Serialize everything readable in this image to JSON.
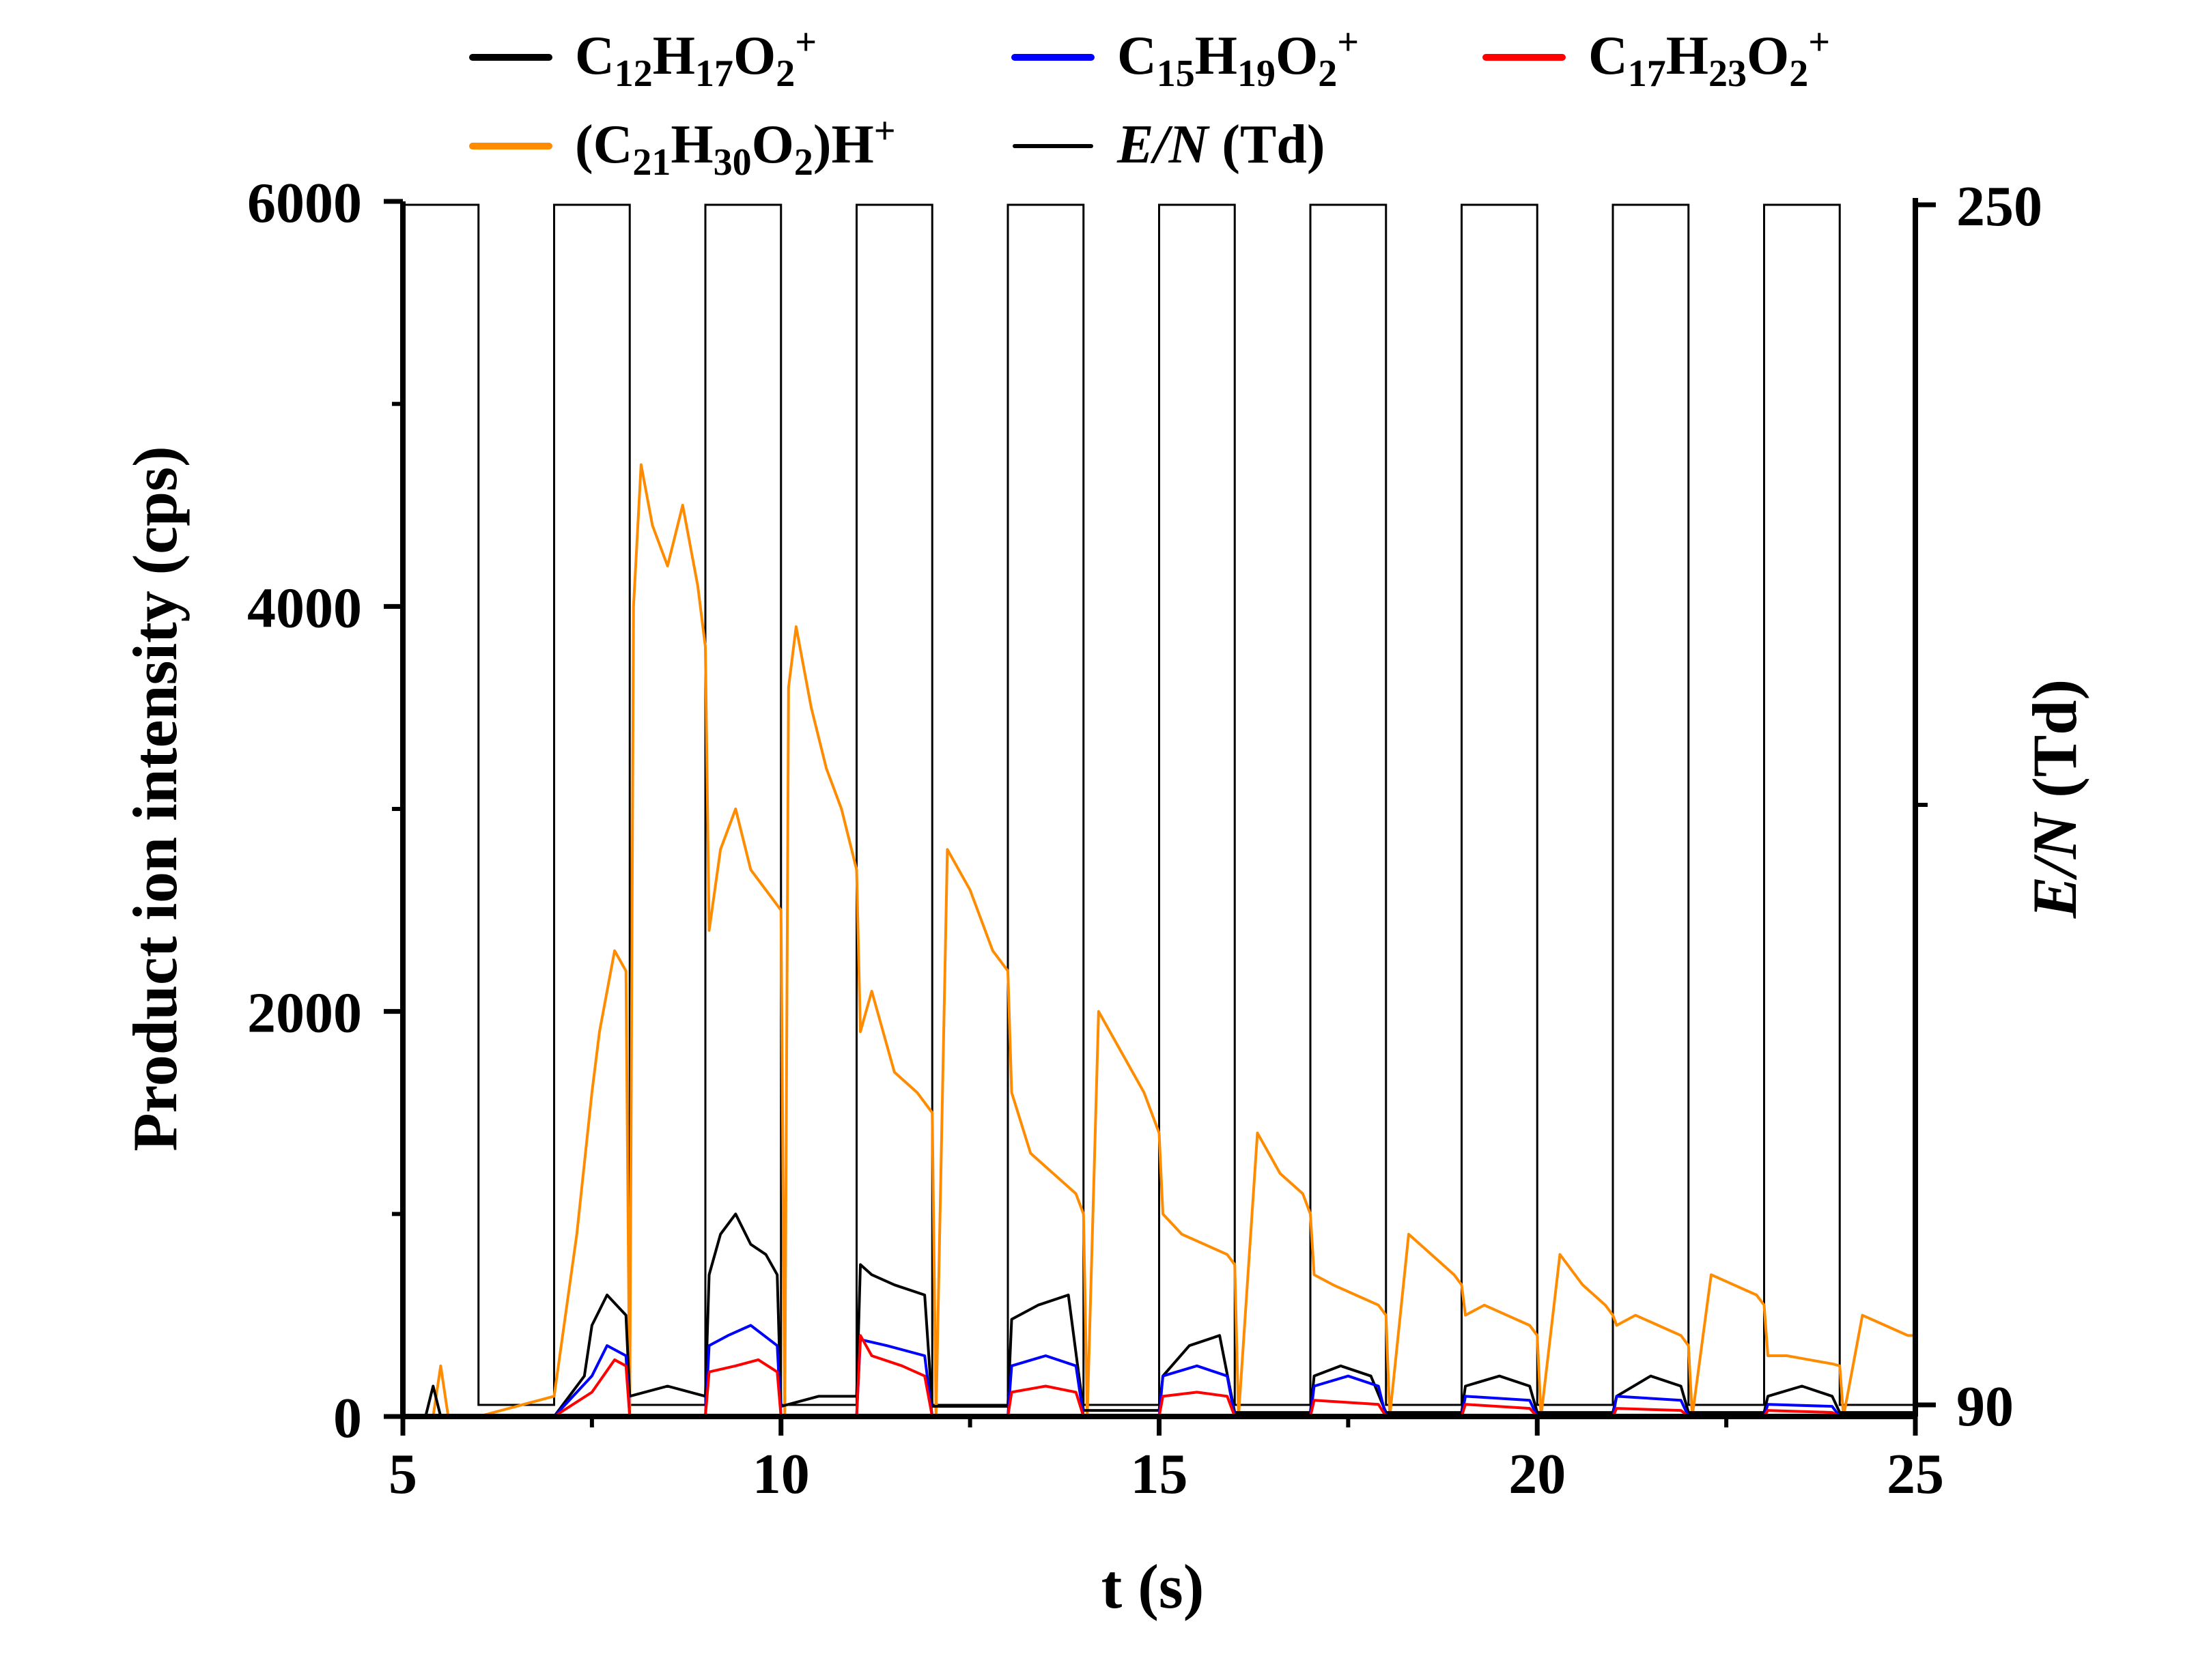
{
  "chart_data": {
    "type": "line",
    "xlabel": "t (s)",
    "ylabel": "Product ion intensity (cps)",
    "y2label": {
      "italic": "E/N",
      "rest": " (Td)"
    },
    "xlim": [
      5,
      25
    ],
    "ylim": [
      0,
      6000
    ],
    "y2lim": [
      90,
      250
    ],
    "x_ticks": [
      5,
      10,
      15,
      20,
      25
    ],
    "y_ticks": [
      0,
      2000,
      4000,
      6000
    ],
    "y2_ticks": [
      90,
      250
    ],
    "grid": false,
    "legend_position": "top",
    "legend": [
      {
        "series": "C12",
        "parts": [
          [
            "C",
            ""
          ],
          [
            "12",
            "sub"
          ],
          [
            "H",
            ""
          ],
          [
            "17",
            "sub"
          ],
          [
            "O",
            ""
          ],
          [
            "2",
            "sub"
          ],
          [
            "+",
            "sup"
          ]
        ],
        "color": "#000000"
      },
      {
        "series": "C15",
        "parts": [
          [
            "C",
            ""
          ],
          [
            "15",
            "sub"
          ],
          [
            "H",
            ""
          ],
          [
            "19",
            "sub"
          ],
          [
            "O",
            ""
          ],
          [
            "2",
            "sub"
          ],
          [
            "+",
            "sup"
          ]
        ],
        "color": "#0000ff"
      },
      {
        "series": "C17",
        "parts": [
          [
            "C",
            ""
          ],
          [
            "17",
            "sub"
          ],
          [
            "H",
            ""
          ],
          [
            "23",
            "sub"
          ],
          [
            "O",
            ""
          ],
          [
            "2",
            "sub"
          ],
          [
            "+",
            "sup"
          ]
        ],
        "color": "#ff0000"
      },
      {
        "series": "C21",
        "parts": [
          [
            "(C",
            ""
          ],
          [
            "21",
            "sub"
          ],
          [
            "H",
            ""
          ],
          [
            "30",
            "sub"
          ],
          [
            "O",
            ""
          ],
          [
            "2",
            "sub"
          ],
          [
            ")H",
            ""
          ],
          [
            "+",
            "sup"
          ]
        ],
        "color": "#ff8c00"
      },
      {
        "series": "EN",
        "parts": [
          [
            "E/N",
            "italic"
          ],
          [
            " (Td)",
            ""
          ]
        ],
        "color": "#000000"
      }
    ],
    "en_square_wave": {
      "low": 90,
      "high": 250,
      "segments": [
        [
          5.0,
          6.0,
          250
        ],
        [
          6.0,
          7.0,
          90
        ],
        [
          7.0,
          8.0,
          250
        ],
        [
          8.0,
          9.0,
          90
        ],
        [
          9.0,
          10.0,
          250
        ],
        [
          10.0,
          11.0,
          90
        ],
        [
          11.0,
          12.0,
          250
        ],
        [
          12.0,
          13.0,
          90
        ],
        [
          13.0,
          14.0,
          250
        ],
        [
          14.0,
          15.0,
          90
        ],
        [
          15.0,
          16.0,
          250
        ],
        [
          16.0,
          17.0,
          90
        ],
        [
          17.0,
          18.0,
          250
        ],
        [
          18.0,
          19.0,
          90
        ],
        [
          19.0,
          20.0,
          250
        ],
        [
          20.0,
          21.0,
          90
        ],
        [
          21.0,
          22.0,
          250
        ],
        [
          22.0,
          23.0,
          90
        ],
        [
          23.0,
          24.0,
          250
        ],
        [
          24.0,
          25.0,
          90
        ]
      ]
    },
    "series": [
      {
        "name": "(C21H30O2)H+",
        "color": "#ff8c00",
        "x": [
          5.0,
          5.4,
          5.5,
          5.6,
          6.0,
          6.5,
          7.0,
          7.3,
          7.5,
          7.6,
          7.8,
          7.95,
          8.0,
          8.05,
          8.15,
          8.3,
          8.5,
          8.7,
          8.9,
          9.0,
          9.05,
          9.2,
          9.4,
          9.6,
          9.8,
          10.0,
          10.05,
          10.1,
          10.2,
          10.4,
          10.6,
          10.8,
          11.0,
          11.05,
          11.2,
          11.5,
          11.8,
          12.0,
          12.05,
          12.2,
          12.5,
          12.8,
          13.0,
          13.05,
          13.3,
          13.6,
          13.9,
          14.0,
          14.05,
          14.2,
          14.5,
          14.8,
          15.0,
          15.05,
          15.3,
          15.6,
          15.9,
          16.0,
          16.05,
          16.3,
          16.6,
          16.9,
          17.0,
          17.05,
          17.3,
          17.6,
          17.9,
          18.0,
          18.05,
          18.3,
          18.6,
          18.9,
          19.0,
          19.05,
          19.3,
          19.6,
          19.9,
          20.0,
          20.05,
          20.3,
          20.6,
          20.9,
          21.0,
          21.05,
          21.3,
          21.6,
          21.9,
          22.0,
          22.05,
          22.3,
          22.6,
          22.9,
          23.0,
          23.05,
          23.3,
          23.6,
          23.9,
          24.0,
          24.05,
          24.3,
          24.6,
          24.9,
          25.0
        ],
        "values": [
          0,
          0,
          250,
          0,
          0,
          50,
          100,
          900,
          1600,
          1900,
          2300,
          2200,
          0,
          4000,
          4700,
          4400,
          4200,
          4500,
          4100,
          3800,
          2400,
          2800,
          3000,
          2700,
          2600,
          2500,
          0,
          3600,
          3900,
          3500,
          3200,
          3000,
          2700,
          1900,
          2100,
          1700,
          1600,
          1500,
          0,
          2800,
          2600,
          2300,
          2200,
          1600,
          1300,
          1200,
          1100,
          1000,
          0,
          2000,
          1800,
          1600,
          1400,
          1000,
          900,
          850,
          800,
          750,
          0,
          1400,
          1200,
          1100,
          1000,
          700,
          650,
          600,
          550,
          500,
          0,
          900,
          800,
          700,
          650,
          500,
          550,
          500,
          450,
          400,
          0,
          800,
          650,
          550,
          500,
          450,
          500,
          450,
          400,
          350,
          0,
          700,
          650,
          600,
          550,
          300,
          300,
          280,
          260,
          250,
          0,
          500,
          450,
          400,
          400
        ]
      },
      {
        "name": "C12H17O2+",
        "color": "#000000",
        "x": [
          5.0,
          5.3,
          5.4,
          5.5,
          6.0,
          7.0,
          7.4,
          7.5,
          7.7,
          7.95,
          8.0,
          8.5,
          9.0,
          9.05,
          9.2,
          9.4,
          9.6,
          9.8,
          9.95,
          10.0,
          10.5,
          11.0,
          11.05,
          11.2,
          11.5,
          11.9,
          12.0,
          12.5,
          13.0,
          13.05,
          13.4,
          13.8,
          14.0,
          14.5,
          15.0,
          15.05,
          15.4,
          15.8,
          16.0,
          16.5,
          17.0,
          17.05,
          17.4,
          17.8,
          18.0,
          18.5,
          19.0,
          19.05,
          19.5,
          19.9,
          20.0,
          21.0,
          21.05,
          21.5,
          21.9,
          22.0,
          23.0,
          23.05,
          23.5,
          23.9,
          24.0,
          25.0
        ],
        "values": [
          0,
          0,
          150,
          0,
          0,
          0,
          200,
          450,
          600,
          500,
          100,
          150,
          100,
          700,
          900,
          1000,
          850,
          800,
          700,
          50,
          100,
          100,
          750,
          700,
          650,
          600,
          50,
          50,
          50,
          480,
          550,
          600,
          30,
          30,
          30,
          200,
          350,
          400,
          20,
          20,
          20,
          200,
          250,
          200,
          20,
          20,
          20,
          150,
          200,
          150,
          20,
          20,
          100,
          200,
          150,
          20,
          20,
          100,
          150,
          100,
          20,
          20
        ]
      },
      {
        "name": "C15H19O2+",
        "color": "#0000ff",
        "x": [
          5.0,
          7.0,
          7.5,
          7.7,
          7.95,
          8.0,
          9.0,
          9.05,
          9.3,
          9.6,
          9.95,
          10.0,
          11.0,
          11.05,
          11.4,
          11.9,
          12.0,
          13.0,
          13.05,
          13.5,
          13.9,
          14.0,
          15.0,
          15.05,
          15.5,
          15.9,
          16.0,
          17.0,
          17.05,
          17.5,
          17.9,
          18.0,
          19.0,
          19.05,
          19.9,
          20.0,
          21.0,
          21.05,
          21.9,
          22.0,
          23.0,
          23.05,
          23.9,
          24.0,
          25.0
        ],
        "values": [
          0,
          0,
          200,
          350,
          300,
          0,
          0,
          350,
          400,
          450,
          350,
          0,
          0,
          380,
          350,
          300,
          0,
          0,
          250,
          300,
          250,
          0,
          0,
          200,
          250,
          200,
          0,
          0,
          150,
          200,
          150,
          0,
          0,
          100,
          80,
          0,
          0,
          100,
          80,
          0,
          0,
          60,
          50,
          0,
          0
        ]
      },
      {
        "name": "C17H23O2+",
        "color": "#ff0000",
        "x": [
          5.0,
          7.0,
          7.5,
          7.8,
          7.95,
          8.0,
          9.0,
          9.05,
          9.4,
          9.7,
          9.95,
          10.0,
          11.0,
          11.05,
          11.2,
          11.6,
          11.9,
          12.0,
          13.0,
          13.05,
          13.5,
          13.9,
          14.0,
          15.0,
          15.05,
          15.5,
          15.9,
          16.0,
          17.0,
          17.05,
          17.9,
          18.0,
          19.0,
          19.05,
          19.9,
          20.0,
          21.0,
          21.05,
          21.9,
          22.0,
          23.0,
          23.05,
          23.9,
          24.0,
          25.0
        ],
        "values": [
          0,
          0,
          120,
          280,
          250,
          0,
          0,
          220,
          250,
          280,
          220,
          0,
          0,
          400,
          300,
          250,
          200,
          0,
          0,
          120,
          150,
          120,
          0,
          0,
          100,
          120,
          100,
          0,
          0,
          80,
          60,
          0,
          0,
          60,
          40,
          0,
          0,
          40,
          30,
          0,
          0,
          30,
          20,
          0,
          0
        ]
      }
    ]
  }
}
